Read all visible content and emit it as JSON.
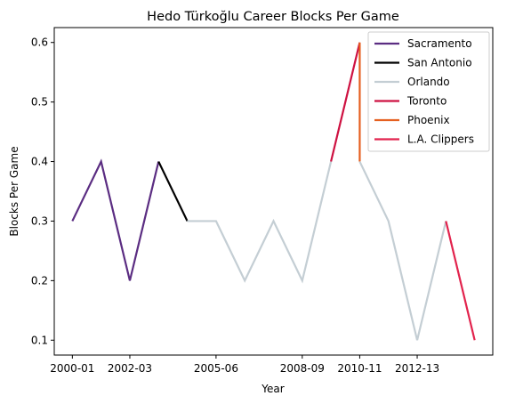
{
  "chart_data": {
    "type": "line",
    "title": "Hedo Türkoğlu Career Blocks Per Game",
    "xlabel": "Year",
    "ylabel": "Blocks Per Game",
    "x_ticks": [
      "2000-01",
      "2002-03",
      "2005-06",
      "2008-09",
      "2010-11",
      "2012-13"
    ],
    "y_ticks": [
      "0.1",
      "0.2",
      "0.3",
      "0.4",
      "0.5",
      "0.6"
    ],
    "ylim": [
      0.075,
      0.625
    ],
    "grid": false,
    "legend_position": "top-right",
    "series": [
      {
        "name": "Sacramento",
        "color": "#5b2d82",
        "x": [
          "2000-01",
          "2001-02",
          "2002-03",
          "2003-04"
        ],
        "values": [
          0.3,
          0.4,
          0.2,
          0.4
        ]
      },
      {
        "name": "San Antonio",
        "color": "#000000",
        "x": [
          "2003-04",
          "2004-05"
        ],
        "values": [
          0.4,
          0.3
        ]
      },
      {
        "name": "Orlando",
        "color": "#c4ced4",
        "x": [
          "2004-05",
          "2005-06",
          "2006-07",
          "2007-08",
          "2008-09",
          "2009-10"
        ],
        "values": [
          0.3,
          0.3,
          0.2,
          0.3,
          0.2,
          0.4
        ]
      },
      {
        "name": "Toronto",
        "color": "#ce1141",
        "x": [
          "2009-10",
          "2010-11"
        ],
        "values": [
          0.4,
          0.6
        ]
      },
      {
        "name": "Phoenix",
        "color": "#e56020",
        "x": [
          "2010-11",
          "2010-11"
        ],
        "values": [
          0.6,
          0.4
        ]
      },
      {
        "name": "Orlando",
        "color": "#c4ced4",
        "x": [
          "2010-11",
          "2011-12",
          "2012-13",
          "2013-14"
        ],
        "values": [
          0.4,
          0.3,
          0.1,
          0.3
        ]
      },
      {
        "name": "L.A. Clippers",
        "color": "#e2234d",
        "x": [
          "2013-14",
          "2014-15"
        ],
        "values": [
          0.3,
          0.1
        ]
      }
    ],
    "legend": [
      "Sacramento",
      "San Antonio",
      "Orlando",
      "Toronto",
      "Phoenix",
      "L.A. Clippers"
    ]
  }
}
